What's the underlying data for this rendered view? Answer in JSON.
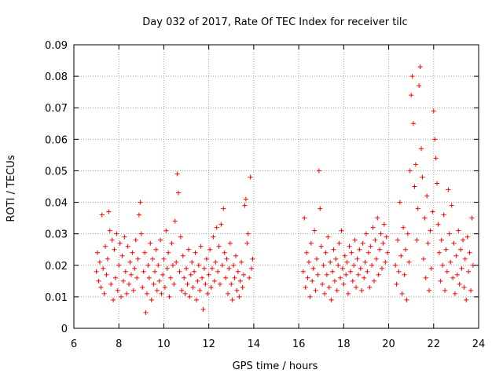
{
  "chart_data": {
    "type": "scatter",
    "title": "Day 032 of 2017, Rate Of TEC Index for receiver tilc",
    "xlabel": "GPS time / hours",
    "ylabel": "ROTI / TECUs",
    "xlim": [
      6,
      24
    ],
    "ylim": [
      0,
      0.09
    ],
    "x_ticks": [
      "6",
      "8",
      "10",
      "12",
      "14",
      "16",
      "18",
      "20",
      "22",
      "24"
    ],
    "y_ticks": [
      "0",
      "0.01",
      "0.02",
      "0.03",
      "0.04",
      "0.05",
      "0.06",
      "0.07",
      "0.08",
      "0.09"
    ],
    "grid": true,
    "marker": "+",
    "color": "#ff0000",
    "series": [
      {
        "name": "ROTI",
        "data_gap": [
          14.0,
          16.2
        ],
        "points": [
          [
            7.0,
            0.018
          ],
          [
            7.05,
            0.024
          ],
          [
            7.1,
            0.015
          ],
          [
            7.15,
            0.021
          ],
          [
            7.2,
            0.013
          ],
          [
            7.25,
            0.036
          ],
          [
            7.3,
            0.019
          ],
          [
            7.35,
            0.011
          ],
          [
            7.4,
            0.026
          ],
          [
            7.45,
            0.017
          ],
          [
            7.5,
            0.022
          ],
          [
            7.55,
            0.037
          ],
          [
            7.6,
            0.031
          ],
          [
            7.65,
            0.014
          ],
          [
            7.7,
            0.028
          ],
          [
            7.75,
            0.009
          ],
          [
            7.8,
            0.025
          ],
          [
            7.85,
            0.016
          ],
          [
            7.9,
            0.03
          ],
          [
            7.95,
            0.012
          ],
          [
            8.0,
            0.02
          ],
          [
            8.05,
            0.027
          ],
          [
            8.1,
            0.01
          ],
          [
            8.15,
            0.023
          ],
          [
            8.2,
            0.015
          ],
          [
            8.25,
            0.029
          ],
          [
            8.3,
            0.018
          ],
          [
            8.35,
            0.011
          ],
          [
            8.4,
            0.026
          ],
          [
            8.45,
            0.014
          ],
          [
            8.5,
            0.021
          ],
          [
            8.55,
            0.017
          ],
          [
            8.6,
            0.024
          ],
          [
            8.65,
            0.012
          ],
          [
            8.7,
            0.019
          ],
          [
            8.75,
            0.028
          ],
          [
            8.8,
            0.016
          ],
          [
            8.85,
            0.022
          ],
          [
            8.9,
            0.036
          ],
          [
            8.95,
            0.04
          ],
          [
            9.0,
            0.03
          ],
          [
            9.05,
            0.013
          ],
          [
            9.1,
            0.018
          ],
          [
            9.15,
            0.024
          ],
          [
            9.2,
            0.005
          ],
          [
            9.25,
            0.011
          ],
          [
            9.3,
            0.02
          ],
          [
            9.35,
            0.016
          ],
          [
            9.4,
            0.027
          ],
          [
            9.45,
            0.009
          ],
          [
            9.5,
            0.022
          ],
          [
            9.55,
            0.014
          ],
          [
            9.6,
            0.018
          ],
          [
            9.65,
            0.025
          ],
          [
            9.7,
            0.012
          ],
          [
            9.75,
            0.02
          ],
          [
            9.8,
            0.015
          ],
          [
            9.85,
            0.028
          ],
          [
            9.9,
            0.011
          ],
          [
            9.95,
            0.017
          ],
          [
            10.0,
            0.022
          ],
          [
            10.05,
            0.013
          ],
          [
            10.1,
            0.031
          ],
          [
            10.15,
            0.019
          ],
          [
            10.2,
            0.024
          ],
          [
            10.25,
            0.01
          ],
          [
            10.3,
            0.016
          ],
          [
            10.35,
            0.027
          ],
          [
            10.4,
            0.02
          ],
          [
            10.45,
            0.014
          ],
          [
            10.5,
            0.034
          ],
          [
            10.55,
            0.021
          ],
          [
            10.6,
            0.049
          ],
          [
            10.65,
            0.043
          ],
          [
            10.7,
            0.018
          ],
          [
            10.75,
            0.029
          ],
          [
            10.8,
            0.012
          ],
          [
            10.85,
            0.023
          ],
          [
            10.9,
            0.016
          ],
          [
            10.95,
            0.011
          ],
          [
            11.0,
            0.019
          ],
          [
            11.05,
            0.014
          ],
          [
            11.1,
            0.025
          ],
          [
            11.15,
            0.01
          ],
          [
            11.2,
            0.017
          ],
          [
            11.25,
            0.021
          ],
          [
            11.3,
            0.013
          ],
          [
            11.35,
            0.018
          ],
          [
            11.4,
            0.024
          ],
          [
            11.45,
            0.009
          ],
          [
            11.5,
            0.015
          ],
          [
            11.55,
            0.02
          ],
          [
            11.6,
            0.012
          ],
          [
            11.65,
            0.026
          ],
          [
            11.7,
            0.016
          ],
          [
            11.75,
            0.006
          ],
          [
            11.8,
            0.019
          ],
          [
            11.85,
            0.014
          ],
          [
            11.9,
            0.022
          ],
          [
            11.95,
            0.011
          ],
          [
            12.0,
            0.017
          ],
          [
            12.05,
            0.025
          ],
          [
            12.1,
            0.013
          ],
          [
            12.15,
            0.019
          ],
          [
            12.2,
            0.029
          ],
          [
            12.25,
            0.015
          ],
          [
            12.3,
            0.021
          ],
          [
            12.35,
            0.032
          ],
          [
            12.4,
            0.018
          ],
          [
            12.45,
            0.026
          ],
          [
            12.5,
            0.014
          ],
          [
            12.55,
            0.033
          ],
          [
            12.6,
            0.02
          ],
          [
            12.65,
            0.038
          ],
          [
            12.7,
            0.024
          ],
          [
            12.75,
            0.016
          ],
          [
            12.8,
            0.022
          ],
          [
            12.85,
            0.011
          ],
          [
            12.9,
            0.019
          ],
          [
            12.95,
            0.027
          ],
          [
            13.0,
            0.014
          ],
          [
            13.05,
            0.009
          ],
          [
            13.1,
            0.02
          ],
          [
            13.15,
            0.016
          ],
          [
            13.2,
            0.023
          ],
          [
            13.25,
            0.012
          ],
          [
            13.3,
            0.018
          ],
          [
            13.35,
            0.01
          ],
          [
            13.4,
            0.015
          ],
          [
            13.45,
            0.021
          ],
          [
            13.5,
            0.013
          ],
          [
            13.55,
            0.017
          ],
          [
            13.6,
            0.039
          ],
          [
            13.65,
            0.041
          ],
          [
            13.7,
            0.027
          ],
          [
            13.75,
            0.03
          ],
          [
            13.8,
            0.016
          ],
          [
            13.85,
            0.048
          ],
          [
            13.9,
            0.019
          ],
          [
            13.95,
            0.022
          ],
          [
            16.2,
            0.018
          ],
          [
            16.25,
            0.035
          ],
          [
            16.3,
            0.013
          ],
          [
            16.35,
            0.024
          ],
          [
            16.4,
            0.016
          ],
          [
            16.45,
            0.021
          ],
          [
            16.5,
            0.01
          ],
          [
            16.55,
            0.027
          ],
          [
            16.6,
            0.015
          ],
          [
            16.65,
            0.019
          ],
          [
            16.7,
            0.031
          ],
          [
            16.75,
            0.012
          ],
          [
            16.8,
            0.022
          ],
          [
            16.85,
            0.017
          ],
          [
            16.9,
            0.05
          ],
          [
            16.95,
            0.038
          ],
          [
            17.0,
            0.026
          ],
          [
            17.05,
            0.014
          ],
          [
            17.1,
            0.02
          ],
          [
            17.15,
            0.011
          ],
          [
            17.2,
            0.024
          ],
          [
            17.25,
            0.017
          ],
          [
            17.3,
            0.029
          ],
          [
            17.35,
            0.013
          ],
          [
            17.4,
            0.021
          ],
          [
            17.45,
            0.009
          ],
          [
            17.5,
            0.018
          ],
          [
            17.55,
            0.025
          ],
          [
            17.6,
            0.015
          ],
          [
            17.65,
            0.022
          ],
          [
            17.7,
            0.012
          ],
          [
            17.75,
            0.02
          ],
          [
            17.8,
            0.027
          ],
          [
            17.85,
            0.016
          ],
          [
            17.9,
            0.031
          ],
          [
            17.95,
            0.019
          ],
          [
            18.0,
            0.014
          ],
          [
            18.05,
            0.023
          ],
          [
            18.1,
            0.017
          ],
          [
            18.15,
            0.021
          ],
          [
            18.2,
            0.011
          ],
          [
            18.25,
            0.026
          ],
          [
            18.3,
            0.018
          ],
          [
            18.35,
            0.024
          ],
          [
            18.4,
            0.015
          ],
          [
            18.45,
            0.02
          ],
          [
            18.5,
            0.028
          ],
          [
            18.55,
            0.013
          ],
          [
            18.6,
            0.022
          ],
          [
            18.65,
            0.017
          ],
          [
            18.7,
            0.025
          ],
          [
            18.75,
            0.019
          ],
          [
            18.8,
            0.012
          ],
          [
            18.85,
            0.027
          ],
          [
            18.9,
            0.016
          ],
          [
            18.95,
            0.021
          ],
          [
            19.0,
            0.03
          ],
          [
            19.05,
            0.018
          ],
          [
            19.1,
            0.024
          ],
          [
            19.15,
            0.013
          ],
          [
            19.2,
            0.026
          ],
          [
            19.25,
            0.02
          ],
          [
            19.3,
            0.032
          ],
          [
            19.35,
            0.015
          ],
          [
            19.4,
            0.028
          ],
          [
            19.45,
            0.022
          ],
          [
            19.5,
            0.035
          ],
          [
            19.55,
            0.017
          ],
          [
            19.6,
            0.025
          ],
          [
            19.65,
            0.03
          ],
          [
            19.7,
            0.019
          ],
          [
            19.75,
            0.027
          ],
          [
            19.8,
            0.033
          ],
          [
            19.85,
            0.021
          ],
          [
            19.9,
            0.029
          ],
          [
            19.95,
            0.024
          ],
          [
            20.3,
            0.02
          ],
          [
            20.35,
            0.014
          ],
          [
            20.4,
            0.028
          ],
          [
            20.45,
            0.018
          ],
          [
            20.5,
            0.04
          ],
          [
            20.55,
            0.023
          ],
          [
            20.6,
            0.011
          ],
          [
            20.65,
            0.032
          ],
          [
            20.7,
            0.017
          ],
          [
            20.75,
            0.025
          ],
          [
            20.8,
            0.009
          ],
          [
            20.85,
            0.03
          ],
          [
            20.9,
            0.021
          ],
          [
            20.95,
            0.05
          ],
          [
            21.0,
            0.074
          ],
          [
            21.05,
            0.08
          ],
          [
            21.1,
            0.065
          ],
          [
            21.15,
            0.045
          ],
          [
            21.2,
            0.052
          ],
          [
            21.25,
            0.028
          ],
          [
            21.3,
            0.038
          ],
          [
            21.35,
            0.077
          ],
          [
            21.4,
            0.083
          ],
          [
            21.45,
            0.057
          ],
          [
            21.5,
            0.048
          ],
          [
            21.55,
            0.022
          ],
          [
            21.6,
            0.035
          ],
          [
            21.65,
            0.016
          ],
          [
            21.7,
            0.042
          ],
          [
            21.75,
            0.027
          ],
          [
            21.8,
            0.012
          ],
          [
            21.85,
            0.031
          ],
          [
            21.9,
            0.019
          ],
          [
            21.95,
            0.037
          ],
          [
            22.0,
            0.069
          ],
          [
            22.05,
            0.06
          ],
          [
            22.1,
            0.054
          ],
          [
            22.15,
            0.046
          ],
          [
            22.2,
            0.033
          ],
          [
            22.25,
            0.024
          ],
          [
            22.3,
            0.015
          ],
          [
            22.35,
            0.028
          ],
          [
            22.4,
            0.02
          ],
          [
            22.45,
            0.036
          ],
          [
            22.5,
            0.012
          ],
          [
            22.55,
            0.025
          ],
          [
            22.6,
            0.018
          ],
          [
            22.65,
            0.044
          ],
          [
            22.7,
            0.03
          ],
          [
            22.75,
            0.021
          ],
          [
            22.8,
            0.039
          ],
          [
            22.85,
            0.016
          ],
          [
            22.9,
            0.027
          ],
          [
            22.95,
            0.011
          ],
          [
            23.0,
            0.023
          ],
          [
            23.05,
            0.017
          ],
          [
            23.1,
            0.031
          ],
          [
            23.15,
            0.014
          ],
          [
            23.2,
            0.025
          ],
          [
            23.25,
            0.019
          ],
          [
            23.3,
            0.028
          ],
          [
            23.35,
            0.013
          ],
          [
            23.4,
            0.022
          ],
          [
            23.45,
            0.009
          ],
          [
            23.5,
            0.029
          ],
          [
            23.55,
            0.018
          ],
          [
            23.6,
            0.024
          ],
          [
            23.65,
            0.012
          ],
          [
            23.7,
            0.035
          ],
          [
            23.75,
            0.02
          ]
        ]
      }
    ]
  }
}
